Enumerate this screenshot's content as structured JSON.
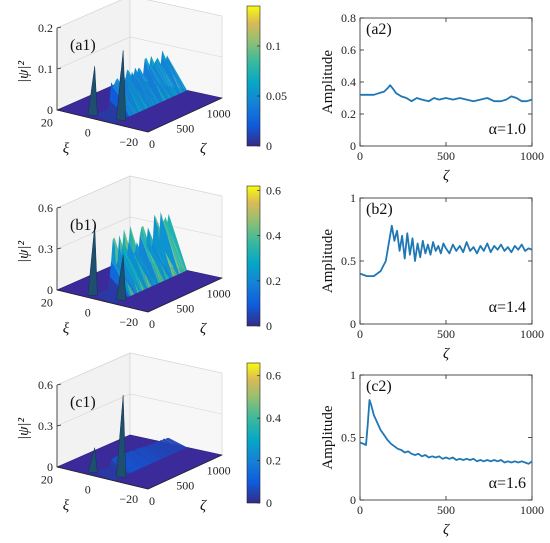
{
  "chart_data": [
    {
      "type": "surface",
      "panel_label": "(a1)",
      "zlabel": "|ψ|²",
      "xlabel": "ξ",
      "ylabel": "ζ",
      "z_ticks": [
        "0",
        "0.1",
        "0.2"
      ],
      "zlim": [
        0,
        0.2
      ],
      "xi_ticks": [
        "20",
        "0",
        "−20"
      ],
      "zeta_ticks": [
        "0",
        "500",
        "1000"
      ],
      "colorbar_ticks": [
        "0",
        "0.05",
        "0.1"
      ],
      "colorbar_range": [
        0,
        0.14
      ],
      "colormap": "parula",
      "peak_amplitude": 0.14
    },
    {
      "type": "line",
      "panel_label": "(a2)",
      "xlabel": "ζ",
      "ylabel": "Amplitude",
      "annotation": "α=1.0",
      "xlim": [
        0,
        1000
      ],
      "ylim": [
        0,
        0.8
      ],
      "x_ticks": [
        "0",
        "500",
        "1000"
      ],
      "y_ticks": [
        "0",
        "0.2",
        "0.4",
        "0.6",
        "0.8"
      ],
      "color": "#1f77b4",
      "points": [
        [
          0,
          0.32
        ],
        [
          40,
          0.32
        ],
        [
          80,
          0.32
        ],
        [
          110,
          0.33
        ],
        [
          140,
          0.34
        ],
        [
          160,
          0.36
        ],
        [
          175,
          0.38
        ],
        [
          190,
          0.36
        ],
        [
          210,
          0.33
        ],
        [
          240,
          0.31
        ],
        [
          270,
          0.3
        ],
        [
          300,
          0.28
        ],
        [
          330,
          0.3
        ],
        [
          360,
          0.29
        ],
        [
          400,
          0.28
        ],
        [
          430,
          0.3
        ],
        [
          460,
          0.29
        ],
        [
          500,
          0.3
        ],
        [
          540,
          0.29
        ],
        [
          580,
          0.3
        ],
        [
          620,
          0.29
        ],
        [
          660,
          0.28
        ],
        [
          700,
          0.29
        ],
        [
          740,
          0.3
        ],
        [
          780,
          0.28
        ],
        [
          820,
          0.28
        ],
        [
          850,
          0.29
        ],
        [
          880,
          0.31
        ],
        [
          910,
          0.3
        ],
        [
          940,
          0.28
        ],
        [
          970,
          0.28
        ],
        [
          1000,
          0.29
        ]
      ]
    },
    {
      "type": "surface",
      "panel_label": "(b1)",
      "zlabel": "|ψ|²",
      "xlabel": "ξ",
      "ylabel": "ζ",
      "z_ticks": [
        "0",
        "0.3",
        "0.6"
      ],
      "zlim": [
        0,
        0.6
      ],
      "xi_ticks": [
        "20",
        "0",
        "−20"
      ],
      "zeta_ticks": [
        "0",
        "500",
        "1000"
      ],
      "colorbar_ticks": [
        "0",
        "0.2",
        "0.4",
        "0.6"
      ],
      "colorbar_range": [
        0,
        0.62
      ],
      "colormap": "parula",
      "peak_amplitude": 0.52
    },
    {
      "type": "line",
      "panel_label": "(b2)",
      "xlabel": "ζ",
      "ylabel": "Amplitude",
      "annotation": "α=1.4",
      "xlim": [
        0,
        1000
      ],
      "ylim": [
        0,
        1
      ],
      "x_ticks": [
        "0",
        "500",
        "1000"
      ],
      "y_ticks": [
        "0",
        "0.5",
        "1"
      ],
      "color": "#1f77b4",
      "points": [
        [
          0,
          0.4
        ],
        [
          40,
          0.38
        ],
        [
          80,
          0.38
        ],
        [
          120,
          0.42
        ],
        [
          150,
          0.5
        ],
        [
          170,
          0.66
        ],
        [
          185,
          0.78
        ],
        [
          200,
          0.66
        ],
        [
          215,
          0.74
        ],
        [
          230,
          0.58
        ],
        [
          245,
          0.7
        ],
        [
          260,
          0.52
        ],
        [
          275,
          0.72
        ],
        [
          290,
          0.55
        ],
        [
          305,
          0.68
        ],
        [
          320,
          0.5
        ],
        [
          335,
          0.64
        ],
        [
          350,
          0.53
        ],
        [
          365,
          0.66
        ],
        [
          380,
          0.56
        ],
        [
          395,
          0.63
        ],
        [
          410,
          0.55
        ],
        [
          425,
          0.65
        ],
        [
          440,
          0.58
        ],
        [
          455,
          0.62
        ],
        [
          470,
          0.56
        ],
        [
          485,
          0.64
        ],
        [
          500,
          0.6
        ],
        [
          520,
          0.56
        ],
        [
          540,
          0.63
        ],
        [
          560,
          0.58
        ],
        [
          580,
          0.62
        ],
        [
          600,
          0.57
        ],
        [
          620,
          0.65
        ],
        [
          640,
          0.58
        ],
        [
          660,
          0.61
        ],
        [
          680,
          0.56
        ],
        [
          700,
          0.62
        ],
        [
          720,
          0.58
        ],
        [
          740,
          0.64
        ],
        [
          760,
          0.57
        ],
        [
          780,
          0.62
        ],
        [
          800,
          0.59
        ],
        [
          820,
          0.63
        ],
        [
          840,
          0.58
        ],
        [
          860,
          0.61
        ],
        [
          880,
          0.57
        ],
        [
          900,
          0.62
        ],
        [
          920,
          0.59
        ],
        [
          940,
          0.63
        ],
        [
          960,
          0.58
        ],
        [
          980,
          0.6
        ],
        [
          1000,
          0.59
        ]
      ]
    },
    {
      "type": "surface",
      "panel_label": "(c1)",
      "zlabel": "|ψ|²",
      "xlabel": "ξ",
      "ylabel": "ζ",
      "z_ticks": [
        "0",
        "0.3",
        "0.6"
      ],
      "zlim": [
        0,
        0.6
      ],
      "xi_ticks": [
        "20",
        "0",
        "−20"
      ],
      "zeta_ticks": [
        "0",
        "500",
        "1000"
      ],
      "colorbar_ticks": [
        "0",
        "0.2",
        "0.4",
        "0.6"
      ],
      "colorbar_range": [
        0,
        0.66
      ],
      "colormap": "parula",
      "peak_amplitude": 0.62
    },
    {
      "type": "line",
      "panel_label": "(c2)",
      "xlabel": "ζ",
      "ylabel": "Amplitude",
      "annotation": "α=1.6",
      "xlim": [
        0,
        1000
      ],
      "ylim": [
        0,
        1
      ],
      "x_ticks": [
        "0",
        "500",
        "1000"
      ],
      "y_ticks": [
        "0",
        "0.5",
        "1"
      ],
      "color": "#1f77b4",
      "points": [
        [
          0,
          0.46
        ],
        [
          20,
          0.45
        ],
        [
          35,
          0.44
        ],
        [
          45,
          0.6
        ],
        [
          55,
          0.8
        ],
        [
          65,
          0.76
        ],
        [
          80,
          0.68
        ],
        [
          100,
          0.62
        ],
        [
          120,
          0.56
        ],
        [
          140,
          0.52
        ],
        [
          160,
          0.48
        ],
        [
          180,
          0.45
        ],
        [
          200,
          0.43
        ],
        [
          220,
          0.41
        ],
        [
          240,
          0.4
        ],
        [
          260,
          0.38
        ],
        [
          280,
          0.39
        ],
        [
          300,
          0.37
        ],
        [
          320,
          0.36
        ],
        [
          340,
          0.37
        ],
        [
          360,
          0.35
        ],
        [
          380,
          0.36
        ],
        [
          400,
          0.34
        ],
        [
          420,
          0.35
        ],
        [
          440,
          0.34
        ],
        [
          460,
          0.35
        ],
        [
          480,
          0.33
        ],
        [
          500,
          0.34
        ],
        [
          520,
          0.33
        ],
        [
          540,
          0.34
        ],
        [
          560,
          0.32
        ],
        [
          580,
          0.33
        ],
        [
          600,
          0.32
        ],
        [
          620,
          0.33
        ],
        [
          640,
          0.32
        ],
        [
          660,
          0.33
        ],
        [
          680,
          0.31
        ],
        [
          700,
          0.32
        ],
        [
          720,
          0.31
        ],
        [
          740,
          0.32
        ],
        [
          760,
          0.31
        ],
        [
          780,
          0.32
        ],
        [
          800,
          0.31
        ],
        [
          820,
          0.32
        ],
        [
          840,
          0.3
        ],
        [
          860,
          0.31
        ],
        [
          880,
          0.3
        ],
        [
          900,
          0.31
        ],
        [
          920,
          0.3
        ],
        [
          940,
          0.31
        ],
        [
          960,
          0.3
        ],
        [
          980,
          0.29
        ],
        [
          1000,
          0.31
        ]
      ]
    }
  ]
}
